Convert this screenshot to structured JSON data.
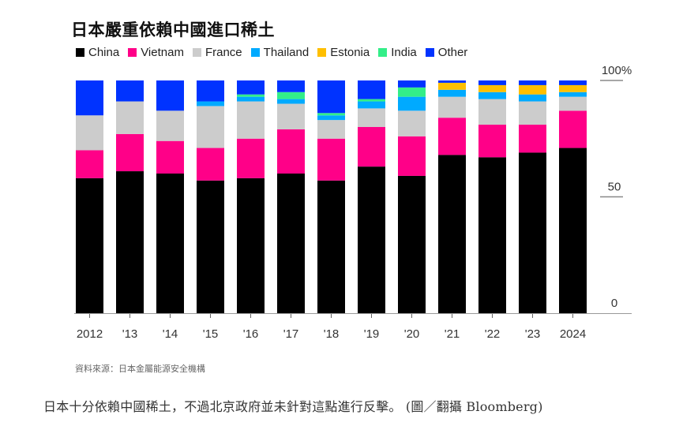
{
  "chart_data": {
    "type": "bar",
    "stacked": true,
    "title": "日本嚴重依賴中國進口稀土",
    "xlabel": "",
    "ylabel": "",
    "ylim": [
      0,
      100
    ],
    "y_ticks": [
      {
        "value": 100,
        "label": "100%"
      },
      {
        "value": 50,
        "label": "50"
      },
      {
        "value": 0,
        "label": "0"
      }
    ],
    "y_axis_position": "right",
    "grid": false,
    "legend_position": "top-left",
    "categories": [
      "2012",
      "'13",
      "'14",
      "'15",
      "'16",
      "'17",
      "'18",
      "'19",
      "'20",
      "'21",
      "'22",
      "'23",
      "2024"
    ],
    "series": [
      {
        "name": "China",
        "color": "#000000",
        "values": [
          58,
          61,
          60,
          57,
          58,
          60,
          57,
          63,
          59,
          68,
          67,
          69,
          71
        ]
      },
      {
        "name": "Vietnam",
        "color": "#ff0088",
        "values": [
          12,
          16,
          14,
          14,
          17,
          19,
          18,
          17,
          17,
          16,
          14,
          12,
          16
        ]
      },
      {
        "name": "France",
        "color": "#cccccc",
        "values": [
          15,
          14,
          13,
          18,
          16,
          11,
          8,
          8,
          11,
          9,
          11,
          10,
          6
        ]
      },
      {
        "name": "Thailand",
        "color": "#00aaff",
        "values": [
          0,
          0,
          0,
          2,
          2,
          2,
          2,
          3,
          6,
          3,
          3,
          3,
          2
        ]
      },
      {
        "name": "Estonia",
        "color": "#ffbf00",
        "values": [
          0,
          0,
          0,
          0,
          0,
          0,
          0,
          0,
          0,
          3,
          3,
          4,
          3
        ]
      },
      {
        "name": "India",
        "color": "#33ee88",
        "values": [
          0,
          0,
          0,
          0,
          1,
          3,
          1,
          1,
          4,
          0,
          0,
          0,
          0
        ]
      },
      {
        "name": "Other",
        "color": "#0033ff",
        "values": [
          15,
          9,
          13,
          9,
          6,
          5,
          14,
          8,
          3,
          1,
          2,
          2,
          2
        ]
      }
    ],
    "source": "資料來源：日本金屬能源安全機構"
  },
  "caption": "日本十分依賴中國稀土，不過北京政府並未針對這點進行反擊。 (圖／翻攝 Bloomberg)"
}
